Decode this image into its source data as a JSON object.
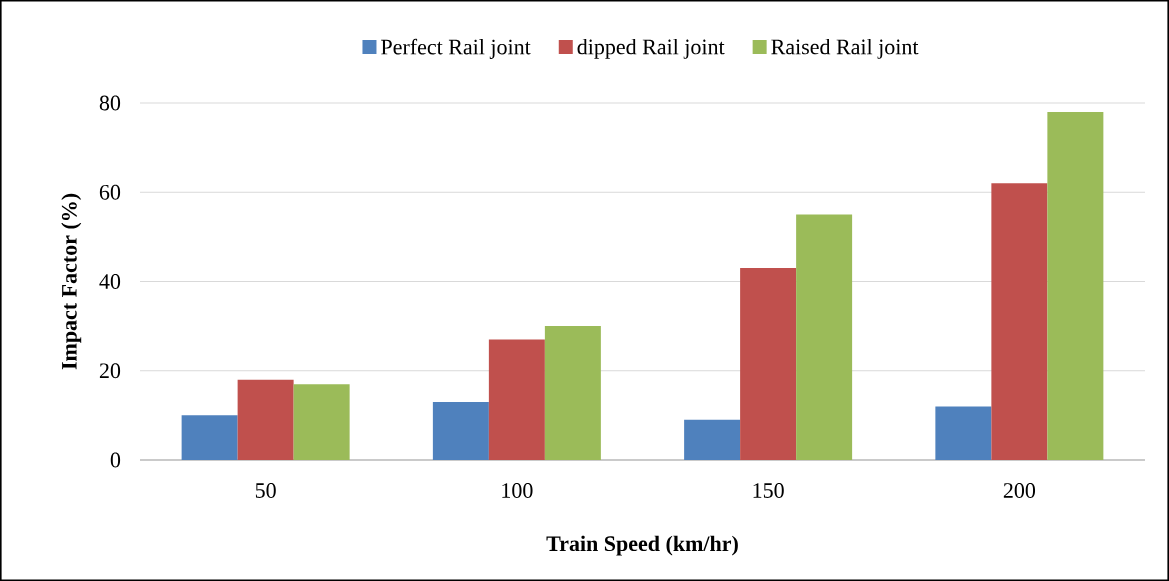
{
  "chart_data": {
    "type": "bar",
    "xlabel": "Train Speed (km/hr)",
    "ylabel": "Impact Factor (%)",
    "categories": [
      "50",
      "100",
      "150",
      "200"
    ],
    "series": [
      {
        "name": "Perfect Rail joint",
        "color": "#4f81bd",
        "values": [
          10,
          13,
          9,
          12
        ]
      },
      {
        "name": "dipped Rail joint",
        "color": "#c0504d",
        "values": [
          18,
          27,
          43,
          62
        ]
      },
      {
        "name": "Raised Rail joint",
        "color": "#9bbb59",
        "values": [
          17,
          30,
          55,
          78
        ]
      }
    ],
    "ylim": [
      0,
      80
    ],
    "yticks": [
      0,
      20,
      40,
      60,
      80
    ],
    "grid": "y",
    "legend": "top"
  }
}
